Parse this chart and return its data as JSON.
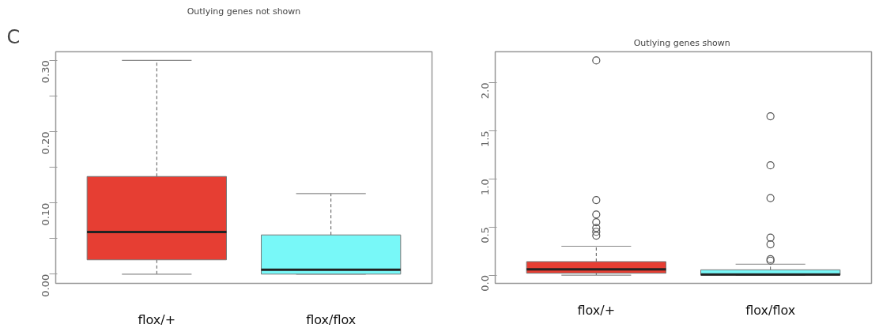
{
  "chart_data": [
    {
      "type": "box",
      "title": "Outlying genes not shown",
      "annotations": [
        "C"
      ],
      "categories": [
        "flox/+",
        "flox/flox"
      ],
      "colors": [
        "#e63e33",
        "#78f8f8"
      ],
      "boxes": [
        {
          "low": 0.0,
          "q1": 0.02,
          "median": 0.059,
          "q3": 0.137,
          "high": 0.3
        },
        {
          "low": 0.0,
          "q1": 0.0,
          "median": 0.006,
          "q3": 0.055,
          "high": 0.113
        }
      ],
      "ylim": [
        -0.013,
        0.312
      ],
      "yticks": [
        {
          "value": 0.0,
          "label": "0.00"
        },
        {
          "value": 0.05,
          "label": null
        },
        {
          "value": 0.1,
          "label": "0.10"
        },
        {
          "value": 0.15,
          "label": null
        },
        {
          "value": 0.2,
          "label": "0.20"
        },
        {
          "value": 0.25,
          "label": null
        },
        {
          "value": 0.3,
          "label": "0.30"
        }
      ]
    },
    {
      "type": "box",
      "title": "Outlying genes  shown",
      "categories": [
        "flox/+",
        "flox/flox"
      ],
      "colors": [
        "#e63e33",
        "#78f8f8"
      ],
      "boxes": [
        {
          "low": 0.0,
          "q1": 0.02,
          "median": 0.06,
          "q3": 0.14,
          "high": 0.3,
          "outliers": [
            2.23,
            0.78,
            0.63,
            0.55,
            0.49,
            0.45,
            0.41
          ]
        },
        {
          "low": 0.0,
          "q1": 0.0,
          "median": 0.006,
          "q3": 0.055,
          "high": 0.113,
          "outliers": [
            1.65,
            1.14,
            0.8,
            0.39,
            0.32,
            0.165,
            0.15
          ]
        }
      ],
      "ylim": [
        -0.086,
        2.32
      ],
      "yticks": [
        {
          "value": 0.0,
          "label": "0.0"
        },
        0.5,
        {
          "value": 1.0,
          "label": "1.0"
        },
        1.5,
        {
          "value": 2.0,
          "label": "2.0"
        }
      ]
    }
  ]
}
